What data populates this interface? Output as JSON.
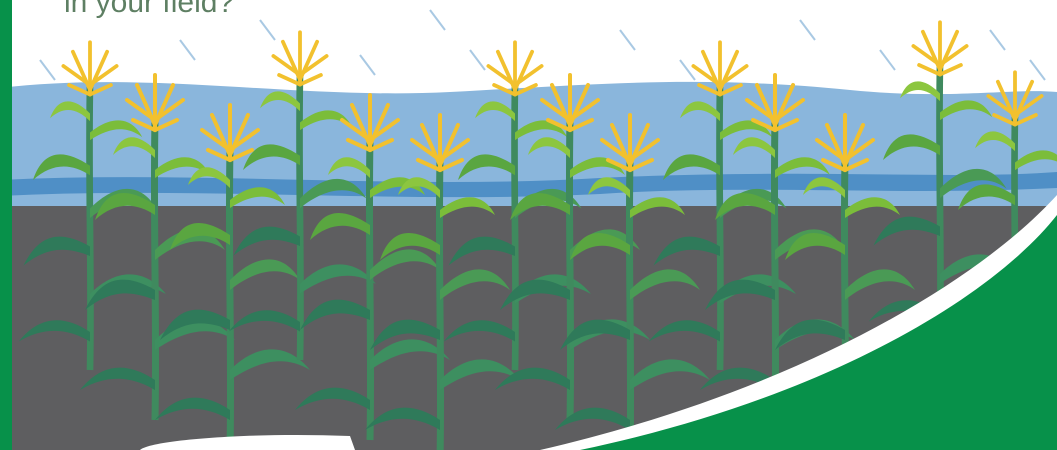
{
  "headline": "in your field?"
}
